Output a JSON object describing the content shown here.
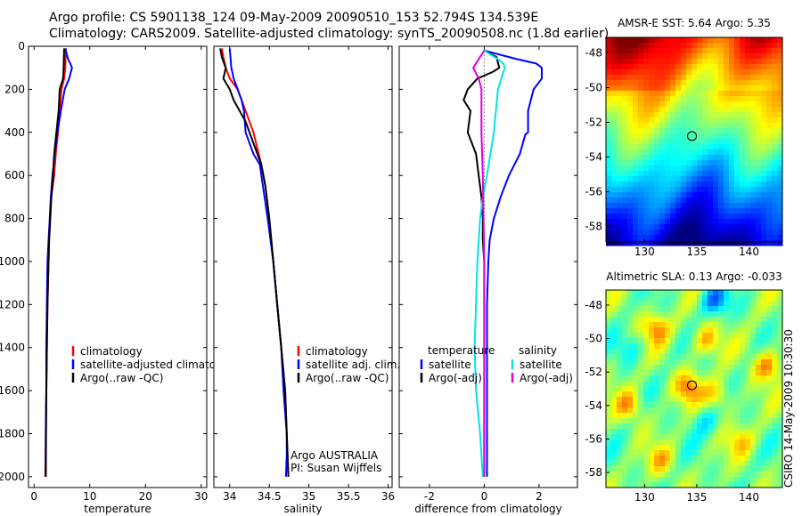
{
  "header": {
    "line1": "Argo profile: CS 5901138_124 09-May-2009 20090510_153 52.794S 134.539E",
    "line2": "Climatology: CARS2009. Satellite-adjusted climatology: synTS_20090508.nc (1.8d earlier)"
  },
  "credit": "CSIRO 14-May-2009 10:30:30",
  "colors": {
    "climatology": "#ff0000",
    "satellite": "#0000ff",
    "argo": "#000000",
    "sal_satellite": "#00e5e5",
    "sal_argo": "#e000e0",
    "marker": "#000000"
  },
  "chart_data": [
    {
      "type": "line",
      "ylabel": "",
      "xlabel": "temperature",
      "xlim": [
        -1,
        31
      ],
      "ylim": [
        2050,
        0
      ],
      "xticks": [
        "0",
        "10",
        "20",
        "30"
      ],
      "yticks": [
        "0",
        "200",
        "400",
        "600",
        "800",
        "1000",
        "1200",
        "1400",
        "1600",
        "1800",
        "2000"
      ],
      "legend": {
        "position": "lower-right",
        "items": [
          "climatology",
          "satellite-adjusted climatology",
          "Argo(..raw -QC)"
        ]
      },
      "series": [
        {
          "name": "climatology",
          "color_key": "climatology",
          "x": [
            5.7,
            5.6,
            5.4,
            4.9,
            4.6,
            4.3,
            3.9,
            3.6,
            3.1,
            2.9,
            2.7,
            2.6,
            2.5,
            2.4,
            2.3,
            2.2,
            2.1,
            2.0
          ],
          "y": [
            10,
            100,
            150,
            200,
            300,
            400,
            500,
            600,
            700,
            800,
            900,
            1000,
            1100,
            1200,
            1400,
            1600,
            1800,
            2000
          ]
        },
        {
          "name": "satellite-adjusted climatology",
          "color_key": "satellite",
          "x": [
            5.6,
            6.1,
            6.5,
            6.8,
            6.3,
            5.5,
            4.8,
            4.2,
            3.7,
            3.3,
            3.0,
            2.8,
            2.6,
            2.4,
            2.3,
            2.2,
            2.2,
            2.1
          ],
          "y": [
            10,
            60,
            80,
            100,
            150,
            200,
            300,
            400,
            500,
            600,
            700,
            800,
            900,
            1000,
            1200,
            1400,
            1600,
            2000
          ]
        },
        {
          "name": "Argo(..raw -QC)",
          "color_key": "argo",
          "x": [
            5.4,
            5.3,
            5.2,
            4.6,
            4.4,
            4.0,
            3.6,
            3.4,
            3.1,
            2.9,
            2.7,
            2.6,
            2.5,
            2.4,
            2.3,
            2.2,
            2.1,
            2.1
          ],
          "y": [
            10,
            100,
            150,
            200,
            300,
            400,
            500,
            600,
            700,
            800,
            900,
            1000,
            1100,
            1200,
            1400,
            1600,
            1800,
            2000
          ]
        }
      ]
    },
    {
      "type": "line",
      "xlabel": "salinity",
      "xlim": [
        33.8,
        36.05
      ],
      "ylim": [
        2050,
        0
      ],
      "xticks": [
        "34",
        "34.5",
        "35",
        "35.5",
        "36"
      ],
      "legend": {
        "position": "lower-right",
        "items": [
          "climatology",
          "satellite adj. clim.",
          "Argo(..raw -QC)"
        ]
      },
      "annotations": [
        "Argo AUSTRALIA",
        "PI: Susan Wijffels"
      ],
      "series": [
        {
          "name": "climatology",
          "color_key": "climatology",
          "x": [
            33.9,
            33.92,
            33.95,
            34.0,
            34.1,
            34.2,
            34.3,
            34.4,
            34.45,
            34.5,
            34.55,
            34.6,
            34.65,
            34.7,
            34.72,
            34.73,
            34.74
          ],
          "y": [
            10,
            50,
            100,
            150,
            200,
            300,
            400,
            550,
            650,
            800,
            1000,
            1200,
            1400,
            1600,
            1800,
            1900,
            2000
          ]
        },
        {
          "name": "satellite adj. clim.",
          "color_key": "satellite",
          "x": [
            34.0,
            34.02,
            34.05,
            34.1,
            34.15,
            34.18,
            34.2,
            34.3,
            34.38,
            34.4,
            34.48,
            34.55,
            34.6,
            34.65,
            34.68,
            34.72,
            34.72,
            34.71
          ],
          "y": [
            10,
            100,
            150,
            200,
            250,
            300,
            400,
            500,
            550,
            600,
            800,
            1000,
            1200,
            1400,
            1600,
            1800,
            1900,
            2000
          ]
        },
        {
          "name": "Argo(..raw -QC)",
          "color_key": "argo",
          "x": [
            33.88,
            33.9,
            33.95,
            33.92,
            34.0,
            34.05,
            34.2,
            34.3,
            34.4,
            34.45,
            34.5,
            34.55,
            34.6,
            34.65,
            34.7,
            34.72,
            34.73,
            34.74
          ],
          "y": [
            10,
            50,
            100,
            150,
            200,
            250,
            350,
            450,
            550,
            650,
            800,
            1000,
            1200,
            1400,
            1600,
            1800,
            1900,
            2000
          ]
        }
      ]
    },
    {
      "type": "line",
      "xlabel": "difference from climatology",
      "xlim": [
        -3.1,
        3.4
      ],
      "ylim": [
        2050,
        0
      ],
      "xticks": [
        "-2",
        "0",
        "2"
      ],
      "legend": {
        "position": "lower-right",
        "groups": [
          {
            "title": "temperature",
            "items": [
              "satellite",
              "Argo(-adj)"
            ]
          },
          {
            "title": "salinity",
            "items": [
              "satellite",
              "Argo(-adj)"
            ]
          }
        ]
      },
      "series": [
        {
          "name": "satellite",
          "group": "temperature",
          "color_key": "satellite",
          "x": [
            0.0,
            1.2,
            1.9,
            2.1,
            2.1,
            1.8,
            1.6,
            1.6,
            1.5,
            1.3,
            0.9,
            0.6,
            0.35,
            0.2,
            0.15,
            0.1,
            0.1,
            0.1
          ],
          "y": [
            20,
            60,
            80,
            100,
            150,
            200,
            300,
            400,
            410,
            500,
            600,
            700,
            800,
            900,
            1000,
            1200,
            1600,
            2000
          ]
        },
        {
          "name": "Argo(-adj)",
          "group": "temperature",
          "color_key": "argo",
          "x": [
            0.0,
            0.45,
            0.55,
            0.3,
            -0.25,
            -0.6,
            -0.75,
            -0.5,
            -0.6,
            -0.3,
            -0.2,
            -0.1,
            -0.05,
            -0.05,
            0.0,
            0.0,
            0.0
          ],
          "y": [
            20,
            50,
            100,
            120,
            150,
            200,
            250,
            300,
            400,
            500,
            600,
            700,
            800,
            900,
            1000,
            1400,
            2000
          ]
        },
        {
          "name": "satellite",
          "group": "salinity",
          "color_key": "sal_satellite",
          "x": [
            0.0,
            0.5,
            0.7,
            0.75,
            0.5,
            0.35,
            0.1,
            -0.05,
            -0.15,
            -0.25,
            -0.35,
            -0.3,
            -0.15,
            -0.05
          ],
          "y": [
            20,
            60,
            80,
            100,
            200,
            400,
            600,
            700,
            800,
            1000,
            1400,
            1600,
            1800,
            2000
          ]
        },
        {
          "name": "Argo(-adj)",
          "group": "salinity",
          "color_key": "sal_argo",
          "x": [
            0.0,
            -0.4,
            -0.2,
            -0.1,
            -0.1,
            -0.05,
            0.0,
            0.0,
            0.0
          ],
          "y": [
            20,
            100,
            150,
            200,
            400,
            600,
            1000,
            1400,
            2000
          ]
        }
      ]
    },
    {
      "type": "heatmap",
      "title": "AMSR-E SST: 5.64 Argo: 5.35",
      "xlim": [
        126.3,
        143.2
      ],
      "ylim": [
        -58.9,
        -47.1
      ],
      "xticks": [
        "130",
        "135",
        "140"
      ],
      "yticks": [
        "-48",
        "-50",
        "-52",
        "-54",
        "-56",
        "-58"
      ],
      "colormap": "jet",
      "marker": {
        "lon": 134.539,
        "lat": -52.794
      }
    },
    {
      "type": "heatmap",
      "title": "Altimetric SLA: 0.13 Argo: -0.033",
      "xlim": [
        126.3,
        143.2
      ],
      "ylim": [
        -58.9,
        -47.1
      ],
      "xticks": [
        "130",
        "135",
        "140"
      ],
      "yticks": [
        "-48",
        "-50",
        "-52",
        "-54",
        "-56",
        "-58"
      ],
      "colormap": "jet",
      "marker": {
        "lon": 134.539,
        "lat": -52.794
      }
    }
  ]
}
